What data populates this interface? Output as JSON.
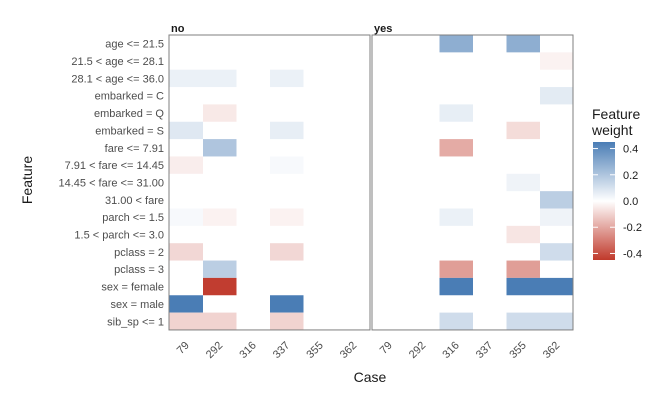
{
  "chart_data": {
    "type": "heatmap",
    "xlabel": "Case",
    "ylabel": "Feature",
    "legend": {
      "title": [
        "Feature",
        "weight"
      ],
      "ticks": [
        0.4,
        0.2,
        0.0,
        -0.2,
        -0.4
      ],
      "tick_labels": [
        "0.4",
        "0.2",
        "0.0",
        "-0.2",
        "-0.4"
      ],
      "range": [
        -0.45,
        0.45
      ],
      "position": "right",
      "colors": {
        "negative": "#c0392b",
        "zero": "#ffffff",
        "positive": "#4a7db5"
      }
    },
    "features": [
      "age <= 21.5",
      "21.5 < age <= 28.1",
      "28.1 < age <= 36.0",
      "embarked = C",
      "embarked = Q",
      "embarked = S",
      "fare <= 7.91",
      "7.91 < fare <= 14.45",
      "14.45 < fare <= 31.00",
      "31.00 < fare",
      "parch <= 1.5",
      "1.5 < parch <= 3.0",
      "pclass = 2",
      "pclass = 3",
      "sex = female",
      "sex = male",
      "sib_sp <= 1"
    ],
    "cases": [
      "79",
      "292",
      "316",
      "337",
      "355",
      "362"
    ],
    "facets": [
      {
        "label": "no",
        "weights": {
          "79": {
            "28.1 < age <= 36.0": 0.05,
            "embarked = S": 0.08,
            "7.91 < fare <= 14.45": -0.04,
            "parch <= 1.5": 0.02,
            "pclass = 2": -0.09,
            "sex = male": 0.45,
            "sib_sp <= 1": -0.1
          },
          "292": {
            "28.1 < age <= 36.0": 0.05,
            "embarked = Q": -0.05,
            "fare <= 7.91": 0.2,
            "parch <= 1.5": -0.03,
            "pclass = 3": 0.17,
            "sex = female": -0.44,
            "sib_sp <= 1": -0.1
          },
          "316": {},
          "337": {
            "28.1 < age <= 36.0": 0.05,
            "embarked = S": 0.06,
            "7.91 < fare <= 14.45": 0.02,
            "parch <= 1.5": -0.03,
            "pclass = 2": -0.09,
            "sex = male": 0.45,
            "sib_sp <= 1": -0.1
          },
          "355": {},
          "362": {}
        }
      },
      {
        "label": "yes",
        "weights": {
          "79": {},
          "292": {},
          "316": {
            "age <= 21.5": 0.28,
            "embarked = Q": 0.06,
            "fare <= 7.91": -0.19,
            "parch <= 1.5": 0.05,
            "pclass = 3": -0.22,
            "sex = female": 0.45,
            "sib_sp <= 1": 0.12
          },
          "337": {},
          "355": {
            "age <= 21.5": 0.28,
            "embarked = S": -0.08,
            "14.45 < fare <= 31.00": 0.04,
            "1.5 < parch <= 3.0": -0.06,
            "pclass = 3": -0.22,
            "sex = female": 0.45,
            "sib_sp <= 1": 0.12
          },
          "362": {
            "21.5 < age <= 28.1": -0.03,
            "embarked = C": 0.07,
            "31.00 < fare": 0.17,
            "parch <= 1.5": 0.04,
            "pclass = 2": 0.12,
            "sex = female": 0.5,
            "sib_sp <= 1": 0.12
          }
        }
      }
    ]
  }
}
